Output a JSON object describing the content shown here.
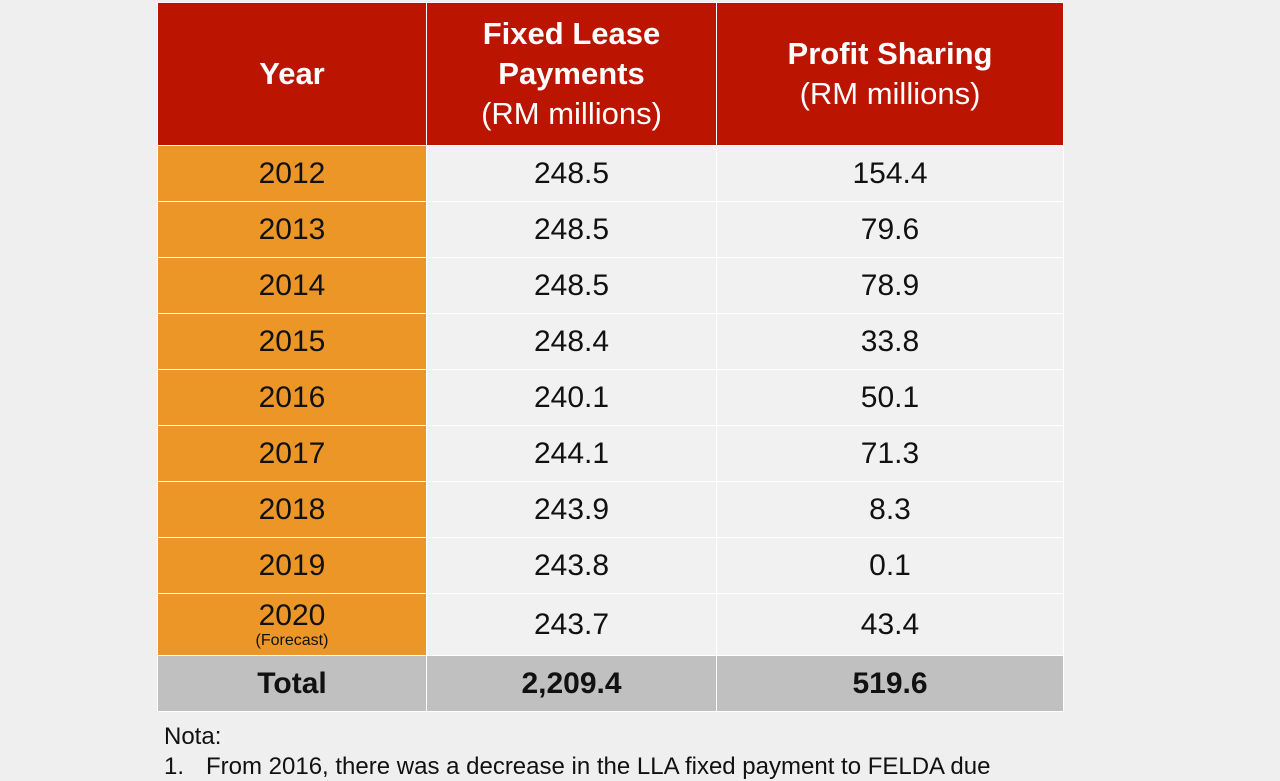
{
  "table": {
    "headers": {
      "year": "Year",
      "fixed_title": "Fixed Lease Payments",
      "fixed_unit": "(RM millions)",
      "profit_title": "Profit Sharing",
      "profit_unit": "(RM millions)"
    },
    "rows": [
      {
        "year": "2012",
        "fixed": "248.5",
        "profit": "154.4"
      },
      {
        "year": "2013",
        "fixed": "248.5",
        "profit": "79.6"
      },
      {
        "year": "2014",
        "fixed": "248.5",
        "profit": "78.9"
      },
      {
        "year": "2015",
        "fixed": "248.4",
        "profit": "33.8"
      },
      {
        "year": "2016",
        "fixed": "240.1",
        "profit": "50.1"
      },
      {
        "year": "2017",
        "fixed": "244.1",
        "profit": "71.3"
      },
      {
        "year": "2018",
        "fixed": "243.9",
        "profit": "8.3"
      },
      {
        "year": "2019",
        "fixed": "243.8",
        "profit": "0.1"
      },
      {
        "year": "2020",
        "year_note": "(Forecast)",
        "fixed": "243.7",
        "profit": "43.4"
      }
    ],
    "total": {
      "label": "Total",
      "fixed": "2,209.4",
      "profit": "519.6"
    }
  },
  "notes": {
    "heading": "Nota:",
    "items": [
      {
        "num": "1.",
        "text": "From 2016, there was a decrease in the LLA fixed payment to FELDA due"
      }
    ]
  },
  "colors": {
    "header": "#bb1400",
    "year_column": "#ec9628",
    "total_row": "#c0c0c0",
    "body": "#f1f1f1"
  }
}
